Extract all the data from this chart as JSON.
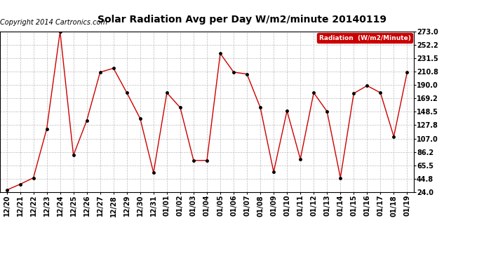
{
  "title": "Solar Radiation Avg per Day W/m2/minute 20140119",
  "copyright_text": "Copyright 2014 Cartronics.com",
  "legend_label": "Radiation  (W/m2/Minute)",
  "x_labels": [
    "12/20",
    "12/21",
    "12/22",
    "12/23",
    "12/24",
    "12/25",
    "12/26",
    "12/27",
    "12/28",
    "12/29",
    "12/30",
    "12/31",
    "01/01",
    "01/02",
    "01/03",
    "01/04",
    "01/05",
    "01/06",
    "01/07",
    "01/08",
    "01/09",
    "01/10",
    "01/11",
    "01/12",
    "01/13",
    "01/14",
    "01/15",
    "01/16",
    "01/17",
    "01/18",
    "01/19"
  ],
  "y_values": [
    27.0,
    36.0,
    46.0,
    122.0,
    273.0,
    81.0,
    135.0,
    210.0,
    216.0,
    178.0,
    138.0,
    54.0,
    178.0,
    155.0,
    73.0,
    73.0,
    239.0,
    210.0,
    207.0,
    155.0,
    55.0,
    150.0,
    75.0,
    178.0,
    149.0,
    46.0,
    177.0,
    189.0,
    178.0,
    110.0,
    210.0
  ],
  "y_ticks": [
    24.0,
    44.8,
    65.5,
    86.2,
    107.0,
    127.8,
    148.5,
    169.2,
    190.0,
    210.8,
    231.5,
    252.2,
    273.0
  ],
  "y_min": 24.0,
  "y_max": 273.0,
  "line_color": "#cc0000",
  "marker_color": "#000000",
  "background_color": "#ffffff",
  "grid_color": "#bbbbbb",
  "title_fontsize": 10,
  "copyright_fontsize": 7,
  "tick_fontsize": 7,
  "legend_bg": "#cc0000",
  "legend_text_color": "#ffffff"
}
